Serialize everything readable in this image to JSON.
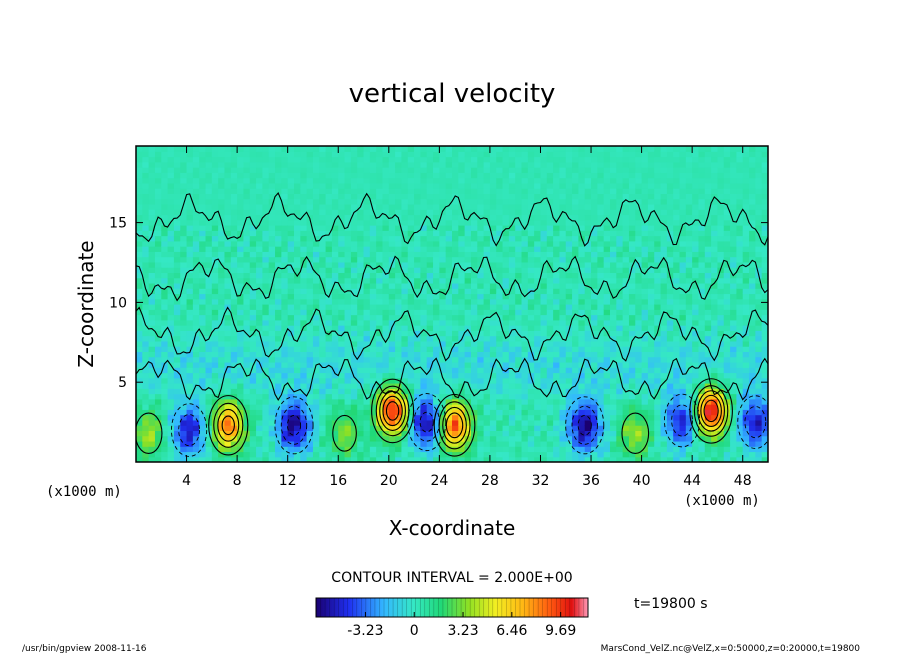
{
  "chart_data": {
    "type": "heatmap",
    "title": "vertical velocity",
    "xlabel": "X-coordinate",
    "ylabel": "Z-coordinate",
    "x_unit_label": "(x1000 m)",
    "x_unit_label_right": "(x1000 m)",
    "xlim": [
      0,
      50
    ],
    "ylim": [
      0,
      19.8
    ],
    "xticks": [
      4,
      8,
      12,
      16,
      20,
      24,
      28,
      32,
      36,
      40,
      44,
      48
    ],
    "yticks": [
      5,
      10,
      15
    ],
    "contour_interval_text": "CONTOUR INTERVAL = 2.000E+00",
    "colorbar": {
      "range": [
        -6.5,
        11.5
      ],
      "tick_values": [
        -3.23,
        0,
        3.23,
        6.46,
        9.69
      ],
      "tick_labels": [
        "-3.23",
        "0",
        "3.23",
        "6.46",
        "9.69"
      ]
    },
    "time_label": "t=19800 s",
    "updrafts": [
      {
        "x": 1.0,
        "z": 1.8,
        "max": 3.5
      },
      {
        "x": 7.3,
        "z": 2.3,
        "max": 8.0
      },
      {
        "x": 16.5,
        "z": 1.8,
        "max": 3.0
      },
      {
        "x": 20.3,
        "z": 3.2,
        "max": 10.0
      },
      {
        "x": 25.2,
        "z": 2.3,
        "max": 9.0
      },
      {
        "x": 39.5,
        "z": 1.8,
        "max": 3.5
      },
      {
        "x": 45.5,
        "z": 3.2,
        "max": 10.5
      }
    ],
    "downdrafts": [
      {
        "x": 4.2,
        "z": 2.0,
        "min": -5.0
      },
      {
        "x": 12.5,
        "z": 2.3,
        "min": -6.0
      },
      {
        "x": 23.0,
        "z": 2.5,
        "min": -6.0
      },
      {
        "x": 35.5,
        "z": 2.3,
        "min": -6.0
      },
      {
        "x": 43.2,
        "z": 2.6,
        "min": -5.0
      },
      {
        "x": 49.0,
        "z": 2.5,
        "min": -5.0
      }
    ]
  },
  "footer": {
    "left": "/usr/bin/gpview  2008-11-16",
    "right": "MarsCond_VelZ.nc@VelZ,x=0:50000,z=0:20000,t=19800"
  }
}
